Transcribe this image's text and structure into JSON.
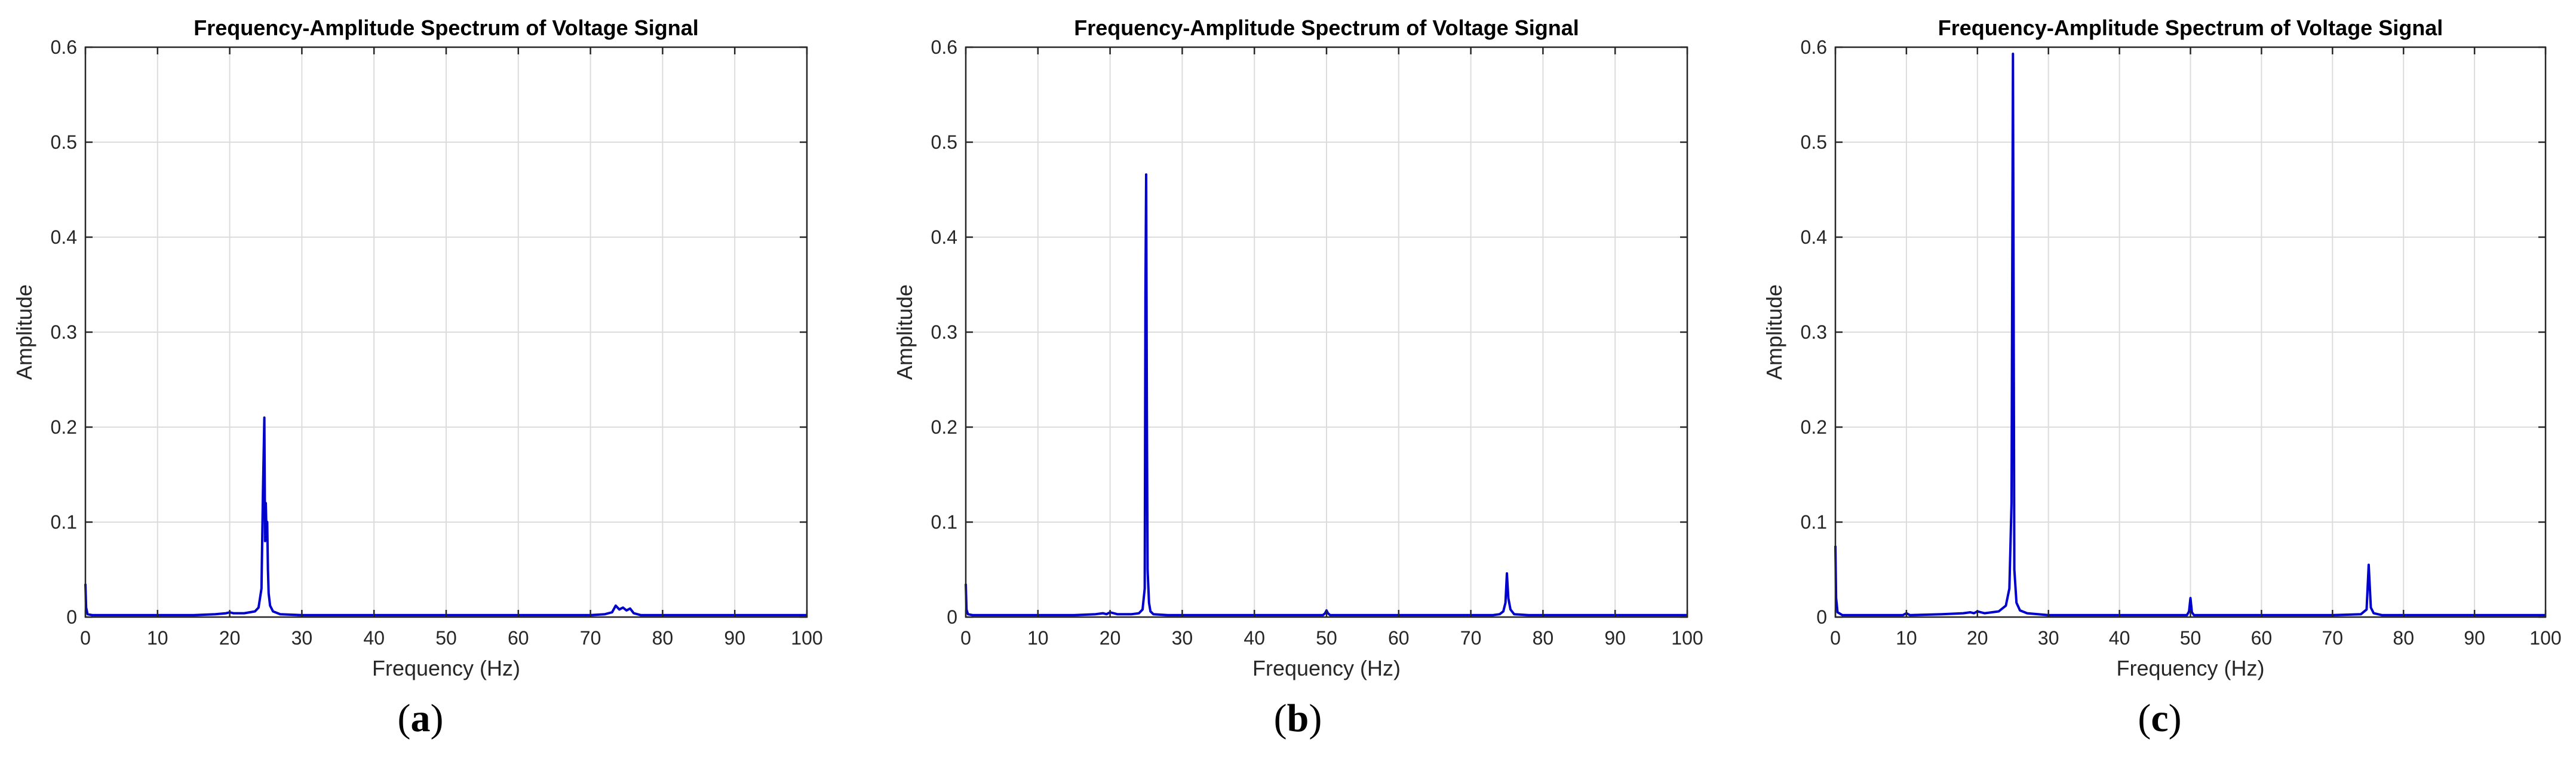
{
  "figure_labels": [
    "a",
    "b",
    "c"
  ],
  "chart_data": [
    {
      "panel": "a",
      "type": "line",
      "title": "Frequency-Amplitude Spectrum of Voltage Signal",
      "xlabel": "Frequency (Hz)",
      "ylabel": "Amplitude",
      "xlim": [
        0,
        100
      ],
      "ylim": [
        0,
        0.6
      ],
      "xticks": [
        0,
        10,
        20,
        30,
        40,
        50,
        60,
        70,
        80,
        90,
        100
      ],
      "yticks": [
        0,
        0.1,
        0.2,
        0.3,
        0.4,
        0.5,
        0.6
      ],
      "grid": true,
      "line_color": "#0000cc",
      "series": [
        {
          "x": [
            0,
            0.1,
            0.3,
            1,
            5,
            10,
            15,
            18,
            19.5,
            20,
            20.5,
            22,
            23.5,
            24,
            24.4,
            24.6,
            24.8,
            24.9,
            25,
            25.1,
            25.2,
            25.3,
            25.4,
            25.6,
            26,
            27,
            30,
            40,
            50,
            60,
            70,
            72,
            73,
            73.5,
            74,
            74.5,
            75,
            75.5,
            76,
            77,
            80,
            90,
            100
          ],
          "y": [
            0.035,
            0.01,
            0.003,
            0.002,
            0.002,
            0.002,
            0.002,
            0.003,
            0.004,
            0.005,
            0.004,
            0.004,
            0.006,
            0.01,
            0.03,
            0.13,
            0.21,
            0.08,
            0.12,
            0.09,
            0.1,
            0.05,
            0.025,
            0.012,
            0.006,
            0.003,
            0.002,
            0.002,
            0.002,
            0.002,
            0.002,
            0.003,
            0.005,
            0.012,
            0.008,
            0.01,
            0.007,
            0.009,
            0.004,
            0.002,
            0.002,
            0.002,
            0.002
          ]
        }
      ]
    },
    {
      "panel": "b",
      "type": "line",
      "title": "Frequency-Amplitude Spectrum of Voltage Signal",
      "xlabel": "Frequency (Hz)",
      "ylabel": "Amplitude",
      "xlim": [
        0,
        100
      ],
      "ylim": [
        0,
        0.6
      ],
      "xticks": [
        0,
        10,
        20,
        30,
        40,
        50,
        60,
        70,
        80,
        90,
        100
      ],
      "yticks": [
        0,
        0.1,
        0.2,
        0.3,
        0.4,
        0.5,
        0.6
      ],
      "grid": true,
      "line_color": "#0000cc",
      "series": [
        {
          "x": [
            0,
            0.1,
            0.3,
            1,
            5,
            10,
            15,
            18,
            19,
            19.5,
            20,
            21,
            23,
            24,
            24.5,
            24.8,
            24.9,
            25,
            25.1,
            25.2,
            25.4,
            25.6,
            26,
            28,
            30,
            40,
            49.5,
            49.8,
            50,
            50.2,
            50.5,
            55,
            60,
            70,
            73,
            74,
            74.5,
            74.8,
            75,
            75.2,
            75.5,
            76,
            78,
            80,
            90,
            100
          ],
          "y": [
            0.035,
            0.008,
            0.003,
            0.002,
            0.002,
            0.002,
            0.002,
            0.003,
            0.004,
            0.003,
            0.005,
            0.003,
            0.003,
            0.004,
            0.008,
            0.03,
            0.34,
            0.466,
            0.22,
            0.05,
            0.015,
            0.006,
            0.003,
            0.002,
            0.002,
            0.002,
            0.002,
            0.004,
            0.007,
            0.004,
            0.002,
            0.002,
            0.002,
            0.002,
            0.002,
            0.003,
            0.006,
            0.015,
            0.046,
            0.02,
            0.008,
            0.003,
            0.002,
            0.002,
            0.002,
            0.002
          ]
        }
      ]
    },
    {
      "panel": "c",
      "type": "line",
      "title": "Frequency-Amplitude Spectrum of Voltage Signal",
      "xlabel": "Frequency (Hz)",
      "ylabel": "Amplitude",
      "xlim": [
        0,
        100
      ],
      "ylim": [
        0,
        0.6
      ],
      "xticks": [
        0,
        10,
        20,
        30,
        40,
        50,
        60,
        70,
        80,
        90,
        100
      ],
      "yticks": [
        0,
        0.1,
        0.2,
        0.3,
        0.4,
        0.5,
        0.6
      ],
      "grid": true,
      "line_color": "#0000cc",
      "series": [
        {
          "x": [
            0,
            0.1,
            0.3,
            1,
            5,
            9.5,
            10,
            10.5,
            15,
            18,
            19,
            19.5,
            20,
            21,
            23,
            24,
            24.5,
            24.8,
            25,
            25.2,
            25.5,
            26,
            27,
            30,
            40,
            49.5,
            49.8,
            50,
            50.2,
            50.5,
            60,
            70,
            74,
            74.8,
            75.1,
            75.4,
            75.8,
            77,
            80,
            90,
            100
          ],
          "y": [
            0.075,
            0.02,
            0.005,
            0.002,
            0.002,
            0.002,
            0.004,
            0.002,
            0.003,
            0.004,
            0.005,
            0.004,
            0.006,
            0.004,
            0.006,
            0.012,
            0.03,
            0.12,
            0.593,
            0.05,
            0.015,
            0.007,
            0.004,
            0.002,
            0.002,
            0.002,
            0.006,
            0.02,
            0.005,
            0.002,
            0.002,
            0.002,
            0.003,
            0.008,
            0.055,
            0.01,
            0.004,
            0.002,
            0.002,
            0.002,
            0.002
          ]
        }
      ]
    }
  ]
}
